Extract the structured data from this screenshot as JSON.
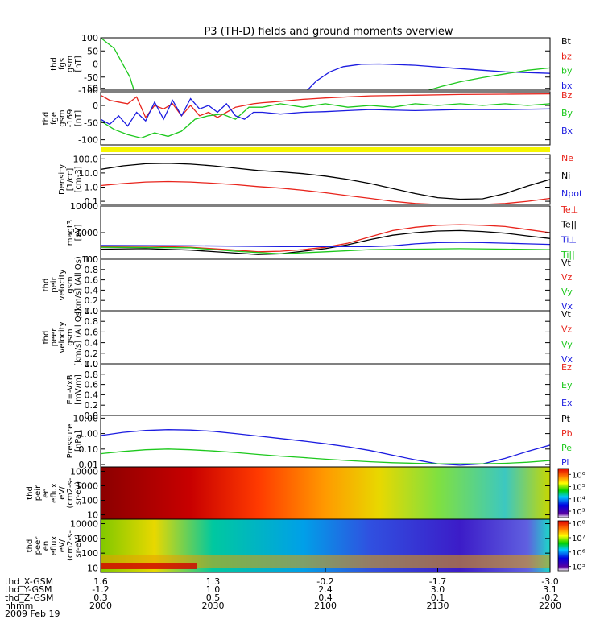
{
  "chart_data": {
    "type": "line",
    "title": "P3 (TH-D) fields and ground moments overview",
    "panels": [
      {
        "ylabel": [
          "thd",
          "fgs",
          "gsm",
          "[nT]"
        ],
        "ytick_labels": [
          "100",
          "50",
          "0",
          "-50",
          "-100"
        ],
        "yticks": [
          100,
          50,
          0,
          -50,
          -100
        ],
        "ylim": [
          -100,
          100
        ],
        "scale": "linear",
        "legend": [
          "Bt",
          "bz",
          "by",
          "bx"
        ],
        "legend_colors": [
          "#000000",
          "#e8241c",
          "#1dc81d",
          "#1c1ce0"
        ],
        "series": [
          {
            "color": "#1dc81d",
            "x": [
              0,
              3,
              6.5,
              7.4
            ],
            "y": [
              100,
              60,
              -50,
              -100
            ]
          },
          {
            "color": "#1c1ce0",
            "x": [
              46,
              48,
              51,
              54,
              58,
              62,
              70,
              80,
              90,
              100
            ],
            "y": [
              -100,
              -65,
              -30,
              -10,
              -1,
              0,
              -5,
              -18,
              -30,
              -36
            ]
          },
          {
            "color": "#1dc81d",
            "x": [
              73,
              76,
              80,
              85,
              90,
              95,
              100
            ],
            "y": [
              -100,
              -85,
              -68,
              -52,
              -38,
              -24,
              -15
            ]
          }
        ]
      },
      {
        "ylabel": [
          "thd",
          "fge",
          "gsm",
          "-169",
          "[nT]"
        ],
        "ytick_labels": [
          "50",
          "0",
          "-50",
          "-100"
        ],
        "yticks": [
          50,
          0,
          -50,
          -100
        ],
        "ylim": [
          -115,
          40
        ],
        "scale": "linear",
        "legend": [
          "Bz",
          "By",
          "Bx"
        ],
        "legend_colors": [
          "#e8241c",
          "#1dc81d",
          "#1c1ce0"
        ],
        "series": [
          {
            "color": "#e8241c",
            "x": [
              0,
              2,
              4,
              6,
              8,
              10,
              12,
              14,
              16,
              18,
              20,
              22,
              24,
              26,
              28,
              30,
              32,
              34,
              36,
              38,
              40,
              45,
              50,
              55,
              60,
              70,
              80,
              90,
              100
            ],
            "y": [
              30,
              15,
              10,
              5,
              25,
              -35,
              0,
              -10,
              5,
              -30,
              0,
              -30,
              -20,
              -35,
              -20,
              -5,
              0,
              5,
              8,
              10,
              12,
              18,
              22,
              25,
              28,
              30,
              32,
              33,
              34
            ]
          },
          {
            "color": "#1dc81d",
            "x": [
              0,
              3,
              6,
              9,
              12,
              15,
              18,
              21,
              24,
              27,
              30,
              33,
              36,
              40,
              45,
              50,
              55,
              60,
              65,
              70,
              75,
              80,
              85,
              90,
              95,
              100
            ],
            "y": [
              -45,
              -70,
              -85,
              -95,
              -80,
              -90,
              -75,
              -40,
              -30,
              -25,
              -40,
              -5,
              -5,
              5,
              -5,
              5,
              -5,
              0,
              -5,
              5,
              0,
              5,
              0,
              5,
              0,
              5
            ]
          },
          {
            "color": "#1c1ce0",
            "x": [
              0,
              2,
              4,
              6,
              8,
              10,
              12,
              14,
              16,
              18,
              20,
              22,
              24,
              26,
              28,
              30,
              32,
              34,
              36,
              40,
              45,
              50,
              55,
              60,
              70,
              80,
              90,
              100
            ],
            "y": [
              -40,
              -55,
              -30,
              -60,
              -20,
              -45,
              10,
              -40,
              15,
              -30,
              20,
              -10,
              0,
              -20,
              5,
              -30,
              -40,
              -20,
              -20,
              -25,
              -20,
              -18,
              -15,
              -12,
              -15,
              -12,
              -12,
              -10
            ]
          }
        ]
      },
      {
        "ylabel": [
          "Density",
          "[1/cc]",
          "[cm-3]"
        ],
        "ytick_labels": [
          "100.0",
          "10.0",
          "1.0",
          "0.1"
        ],
        "yticks": [
          100,
          10,
          1,
          0.1
        ],
        "ylim": [
          0.06,
          200
        ],
        "scale": "log",
        "legend": [
          "Ne",
          "Ni",
          "Npot"
        ],
        "legend_colors": [
          "#e8241c",
          "#000000",
          "#1c1ce0"
        ],
        "series": [
          {
            "color": "#000000",
            "x": [
              0,
              5,
              10,
              15,
              20,
              25,
              30,
              35,
              40,
              45,
              50,
              55,
              60,
              65,
              70,
              75,
              80,
              85,
              90,
              95,
              100
            ],
            "y": [
              18,
              32,
              45,
              48,
              42,
              32,
              22,
              15,
              12,
              9,
              6,
              3.5,
              1.8,
              0.8,
              0.35,
              0.18,
              0.14,
              0.15,
              0.35,
              1.2,
              3.5
            ]
          },
          {
            "color": "#e8241c",
            "x": [
              0,
              5,
              10,
              15,
              20,
              25,
              30,
              35,
              40,
              45,
              50,
              55,
              60,
              65,
              70,
              75,
              80,
              85,
              90,
              95,
              100
            ],
            "y": [
              1.3,
              1.8,
              2.3,
              2.5,
              2.3,
              1.9,
              1.5,
              1.1,
              0.85,
              0.6,
              0.4,
              0.25,
              0.16,
              0.1,
              0.07,
              0.06,
              0.06,
              0.06,
              0.07,
              0.1,
              0.16
            ]
          }
        ]
      },
      {
        "ylabel": [
          "magt3",
          "[eV]"
        ],
        "ytick_labels": [
          "10000",
          "1000",
          "100"
        ],
        "yticks": [
          10000,
          1000,
          100
        ],
        "ylim": [
          100,
          10000
        ],
        "scale": "log",
        "legend": [
          "Te⊥",
          "Te||",
          "Ti⊥",
          "Ti||"
        ],
        "legend_colors": [
          "#e8241c",
          "#000000",
          "#1c1ce0",
          "#1dc81d"
        ],
        "series": [
          {
            "color": "#e8241c",
            "x": [
              0,
              10,
              20,
              30,
              35,
              40,
              45,
              50,
              55,
              60,
              65,
              70,
              75,
              80,
              85,
              90,
              95,
              100
            ],
            "y": [
              300,
              310,
              280,
              220,
              190,
              200,
              230,
              280,
              400,
              700,
              1200,
              1600,
              1900,
              2000,
              1900,
              1700,
              1300,
              1000
            ]
          },
          {
            "color": "#000000",
            "x": [
              0,
              10,
              20,
              30,
              35,
              40,
              45,
              50,
              55,
              60,
              65,
              70,
              75,
              80,
              85,
              90,
              95,
              100
            ],
            "y": [
              240,
              250,
              220,
              170,
              150,
              160,
              200,
              250,
              350,
              550,
              800,
              1000,
              1150,
              1200,
              1100,
              950,
              750,
              600
            ]
          },
          {
            "color": "#1c1ce0",
            "x": [
              0,
              20,
              40,
              60,
              65,
              70,
              75,
              80,
              85,
              90,
              95,
              100
            ],
            "y": [
              330,
              320,
              300,
              300,
              320,
              380,
              420,
              430,
              420,
              400,
              380,
              360
            ]
          },
          {
            "color": "#1dc81d",
            "x": [
              0,
              20,
              30,
              40,
              50,
              60,
              70,
              80,
              90,
              100
            ],
            "y": [
              280,
              270,
              200,
              160,
              190,
              230,
              240,
              250,
              240,
              230
            ]
          }
        ]
      },
      {
        "ylabel": [
          "thd",
          "peir",
          "velocity",
          "gsm",
          "[km/s] (All Qs)"
        ],
        "ytick_labels": [
          "1.0",
          "0.8",
          "0.6",
          "0.4",
          "0.2",
          "0.0"
        ],
        "yticks": [
          1.0,
          0.8,
          0.6,
          0.4,
          0.2,
          0.0
        ],
        "ylim": [
          0,
          1
        ],
        "scale": "linear",
        "legend": [
          "Vt",
          "Vz",
          "Vy",
          "Vx"
        ],
        "legend_colors": [
          "#000000",
          "#e8241c",
          "#1dc81d",
          "#1c1ce0"
        ],
        "series": []
      },
      {
        "ylabel": [
          "thd",
          "peer",
          "velocity",
          "gsm",
          "[km/s] (All Qs)"
        ],
        "ytick_labels": [
          "1.0",
          "0.8",
          "0.6",
          "0.4",
          "0.2",
          "0.0"
        ],
        "yticks": [
          1.0,
          0.8,
          0.6,
          0.4,
          0.2,
          0.0
        ],
        "ylim": [
          0,
          1
        ],
        "scale": "linear",
        "legend": [
          "Vt",
          "Vz",
          "Vy",
          "Vx"
        ],
        "legend_colors": [
          "#000000",
          "#e8241c",
          "#1dc81d",
          "#1c1ce0"
        ],
        "series": []
      },
      {
        "ylabel": [
          "E=-VxB",
          "[mV/m]"
        ],
        "ytick_labels": [
          "1.0",
          "0.8",
          "0.6",
          "0.4",
          "0.2",
          "0.0"
        ],
        "yticks": [
          1.0,
          0.8,
          0.6,
          0.4,
          0.2,
          0.0
        ],
        "ylim": [
          0,
          1
        ],
        "scale": "linear",
        "legend": [
          "Ez",
          "Ey",
          "Ex"
        ],
        "legend_colors": [
          "#e8241c",
          "#1dc81d",
          "#1c1ce0"
        ],
        "series": []
      },
      {
        "ylabel": [
          "Pressure",
          "[nPa]"
        ],
        "ytick_labels": [
          "10.00",
          "1.00",
          "0.10",
          "0.01"
        ],
        "yticks": [
          10,
          1,
          0.1,
          0.01
        ],
        "ylim": [
          0.007,
          15
        ],
        "scale": "log",
        "legend": [
          "Pt",
          "Pb",
          "Pe",
          "Pi"
        ],
        "legend_colors": [
          "#000000",
          "#e8241c",
          "#1dc81d",
          "#1c1ce0"
        ],
        "series": [
          {
            "color": "#1c1ce0",
            "x": [
              0,
              5,
              10,
              15,
              20,
              25,
              30,
              35,
              40,
              45,
              50,
              55,
              60,
              65,
              70,
              75,
              80,
              85,
              90,
              95,
              100
            ],
            "y": [
              0.75,
              1.2,
              1.6,
              1.8,
              1.7,
              1.4,
              1.0,
              0.7,
              0.48,
              0.33,
              0.22,
              0.14,
              0.08,
              0.04,
              0.02,
              0.011,
              0.009,
              0.011,
              0.025,
              0.07,
              0.18
            ]
          },
          {
            "color": "#1dc81d",
            "x": [
              0,
              5,
              10,
              15,
              20,
              25,
              30,
              35,
              40,
              45,
              50,
              55,
              60,
              65,
              70,
              75,
              80,
              85,
              90,
              95,
              100
            ],
            "y": [
              0.05,
              0.07,
              0.09,
              0.1,
              0.09,
              0.075,
              0.06,
              0.045,
              0.035,
              0.028,
              0.022,
              0.018,
              0.015,
              0.013,
              0.012,
              0.011,
              0.011,
              0.011,
              0.012,
              0.014,
              0.018
            ]
          }
        ]
      },
      {
        "ylabel": [
          "thd",
          "peir",
          "en",
          "eflux",
          "eV/",
          "(cm2-s-",
          "sr-eV)"
        ],
        "ytick_labels": [
          "10000",
          "1000",
          "100",
          "10"
        ],
        "yticks": [
          10000,
          1000,
          100,
          10
        ],
        "ylim": [
          5,
          20000
        ],
        "scale": "log",
        "type": "heatmap",
        "colorbar_labels": [
          "10⁶",
          "10⁵",
          "10⁴",
          "10³"
        ],
        "colorbar_values": [
          1000000,
          100000,
          10000,
          1000
        ],
        "clim": [
          300,
          3000000
        ]
      },
      {
        "ylabel": [
          "thd",
          "peer",
          "en",
          "eflux",
          "eV/",
          "(cm2-s-",
          "sr-eV)"
        ],
        "ytick_labels": [
          "10000",
          "1000",
          "100",
          "10"
        ],
        "yticks": [
          10000,
          1000,
          100,
          10
        ],
        "ylim": [
          5,
          20000
        ],
        "scale": "log",
        "type": "heatmap",
        "colorbar_labels": [
          "10⁸",
          "10⁷",
          "10⁶",
          "10⁵"
        ],
        "colorbar_values": [
          100000000,
          10000000,
          1000000,
          100000
        ],
        "clim": [
          50000,
          150000000
        ]
      }
    ],
    "xaxis": {
      "row_labels": [
        "thd_X-GSM",
        "thd_Y-GSM",
        "thd_Z-GSM",
        "hhmm",
        "2009 Feb 19"
      ],
      "ticks": [
        {
          "x": 0,
          "rows": [
            "1.6",
            "-1.2",
            "0.3",
            "2000"
          ]
        },
        {
          "x": 25,
          "rows": [
            "1.3",
            "1.0",
            "0.5",
            "2030"
          ]
        },
        {
          "x": 50,
          "rows": [
            "-0.2",
            "2.4",
            "0.4",
            "2100"
          ]
        },
        {
          "x": 75,
          "rows": [
            "-1.7",
            "3.0",
            "0.1",
            "2130"
          ]
        },
        {
          "x": 100,
          "rows": [
            "-3.0",
            "3.1",
            "-0.2",
            "2200"
          ]
        }
      ]
    },
    "colors": {
      "axis": "#000000",
      "yellow_bar": "#f5f500",
      "red": "#e8241c",
      "green": "#1dc81d",
      "blue": "#1c1ce0"
    }
  }
}
